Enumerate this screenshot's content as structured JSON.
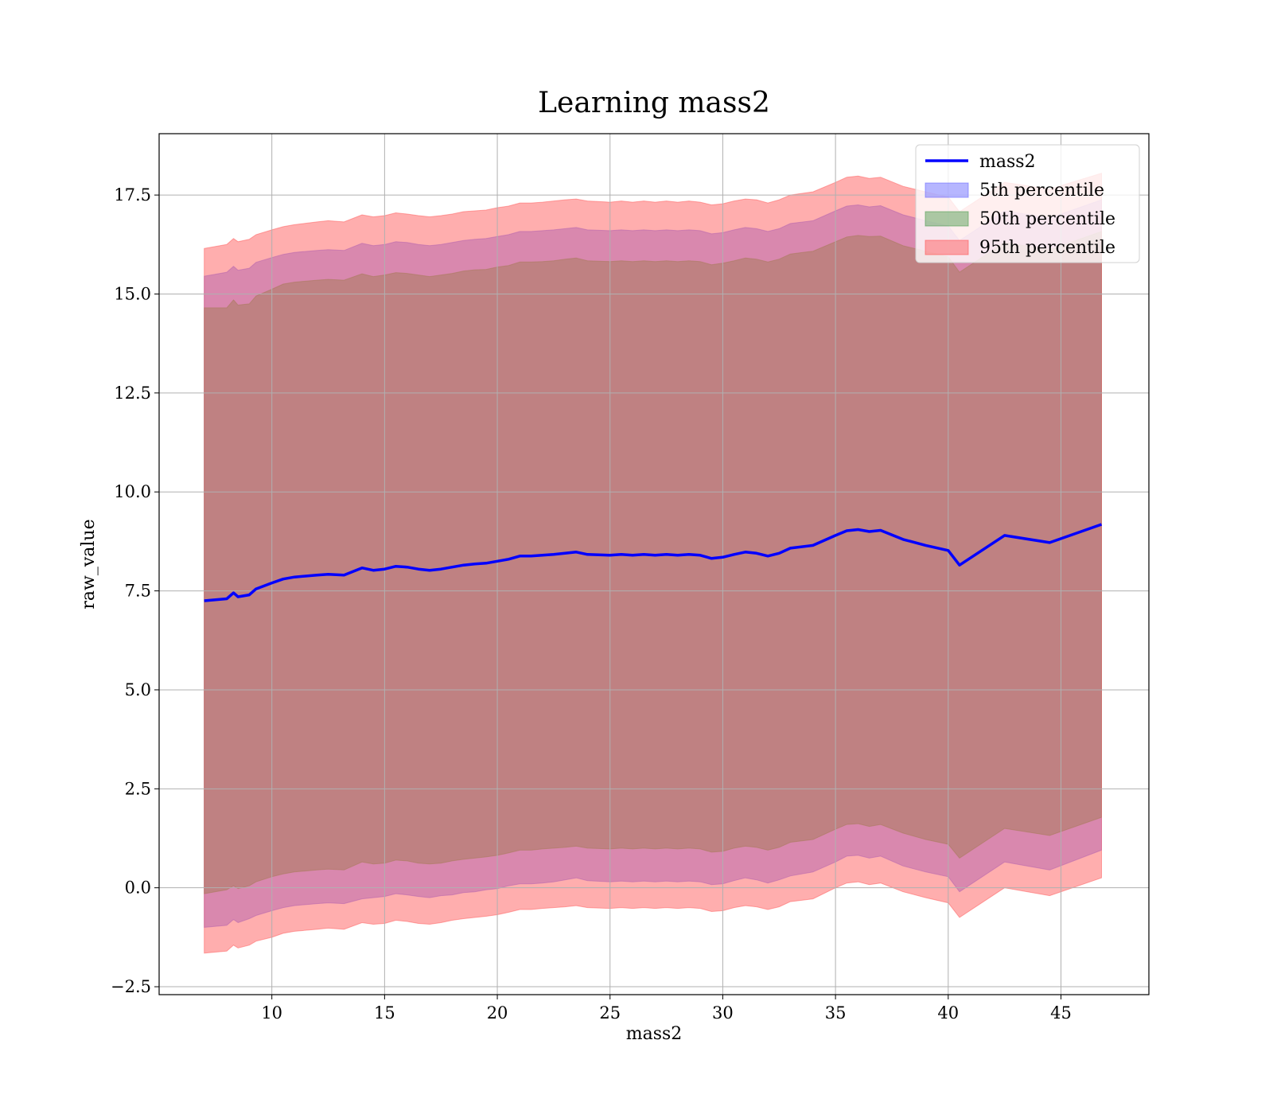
{
  "chart_data": {
    "type": "area",
    "title": "Learning mass2",
    "xlabel": "mass2",
    "ylabel": "raw_value",
    "xlim": [
      5.0,
      48.9
    ],
    "ylim": [
      -2.7,
      19.05
    ],
    "grid": true,
    "legend_placement": "top-right",
    "x_ticks": [
      10,
      15,
      20,
      25,
      30,
      35,
      40,
      45
    ],
    "x_tick_labels": [
      "10",
      "15",
      "20",
      "25",
      "30",
      "35",
      "40",
      "45"
    ],
    "y_ticks": [
      -2.5,
      0.0,
      2.5,
      5.0,
      7.5,
      10.0,
      12.5,
      15.0,
      17.5
    ],
    "y_tick_labels": [
      "−2.5",
      "0.0",
      "2.5",
      "5.0",
      "7.5",
      "10.0",
      "12.5",
      "15.0",
      "17.5"
    ],
    "x": [
      7.0,
      8.0,
      8.3,
      8.5,
      9.0,
      9.3,
      10.0,
      10.5,
      11.0,
      12.0,
      12.5,
      13.2,
      14.0,
      14.5,
      15.0,
      15.5,
      16.0,
      16.5,
      17.0,
      17.5,
      18.0,
      18.5,
      19.0,
      19.5,
      20.0,
      20.5,
      21.0,
      21.5,
      22.0,
      22.5,
      23.0,
      23.5,
      24.0,
      25.0,
      25.5,
      26.0,
      26.5,
      27.0,
      27.5,
      28.0,
      28.5,
      29.0,
      29.5,
      30.0,
      30.5,
      31.0,
      31.5,
      32.0,
      32.5,
      33.0,
      34.0,
      35.0,
      35.5,
      36.0,
      36.5,
      37.0,
      38.0,
      39.0,
      40.0,
      40.5,
      42.5,
      44.5,
      46.8
    ],
    "series": [
      {
        "name": "mass2",
        "kind": "line",
        "color": "#0000ff",
        "values": [
          7.25,
          7.3,
          7.45,
          7.35,
          7.4,
          7.55,
          7.7,
          7.8,
          7.85,
          7.9,
          7.92,
          7.9,
          8.08,
          8.02,
          8.05,
          8.12,
          8.1,
          8.05,
          8.02,
          8.05,
          8.1,
          8.15,
          8.18,
          8.2,
          8.25,
          8.3,
          8.38,
          8.38,
          8.4,
          8.42,
          8.45,
          8.48,
          8.42,
          8.4,
          8.42,
          8.4,
          8.42,
          8.4,
          8.42,
          8.4,
          8.42,
          8.4,
          8.32,
          8.35,
          8.42,
          8.48,
          8.45,
          8.38,
          8.45,
          8.58,
          8.65,
          8.9,
          9.02,
          9.05,
          9.0,
          9.03,
          8.8,
          8.65,
          8.52,
          8.15,
          8.9,
          8.72,
          9.18
        ]
      },
      {
        "name": "5th percentile",
        "kind": "band",
        "color": "#6666ff",
        "lower": [
          -1.0,
          -0.95,
          -0.8,
          -0.88,
          -0.78,
          -0.7,
          -0.58,
          -0.5,
          -0.45,
          -0.4,
          -0.38,
          -0.4,
          -0.28,
          -0.25,
          -0.22,
          -0.15,
          -0.18,
          -0.22,
          -0.25,
          -0.2,
          -0.18,
          -0.12,
          -0.1,
          -0.05,
          -0.02,
          0.05,
          0.1,
          0.1,
          0.12,
          0.15,
          0.2,
          0.25,
          0.18,
          0.15,
          0.17,
          0.15,
          0.17,
          0.15,
          0.17,
          0.15,
          0.17,
          0.15,
          0.08,
          0.1,
          0.18,
          0.25,
          0.2,
          0.12,
          0.2,
          0.3,
          0.4,
          0.65,
          0.8,
          0.82,
          0.75,
          0.8,
          0.55,
          0.4,
          0.28,
          -0.1,
          0.65,
          0.45,
          0.95
        ],
        "upper": [
          15.45,
          15.55,
          15.7,
          15.6,
          15.65,
          15.8,
          15.92,
          16.0,
          16.05,
          16.1,
          16.12,
          16.1,
          16.28,
          16.22,
          16.25,
          16.32,
          16.3,
          16.25,
          16.22,
          16.25,
          16.3,
          16.35,
          16.38,
          16.4,
          16.45,
          16.5,
          16.58,
          16.58,
          16.6,
          16.62,
          16.65,
          16.68,
          16.62,
          16.6,
          16.62,
          16.6,
          16.62,
          16.6,
          16.62,
          16.6,
          16.62,
          16.6,
          16.52,
          16.55,
          16.62,
          16.68,
          16.65,
          16.58,
          16.65,
          16.78,
          16.85,
          17.1,
          17.22,
          17.25,
          17.2,
          17.23,
          17.0,
          16.85,
          16.72,
          16.35,
          17.1,
          16.92,
          17.38
        ]
      },
      {
        "name": "50th percentile",
        "kind": "band",
        "color": "#4f9a4f",
        "lower": [
          -0.15,
          -0.05,
          0.05,
          -0.02,
          0.05,
          0.15,
          0.28,
          0.35,
          0.4,
          0.45,
          0.47,
          0.45,
          0.65,
          0.6,
          0.62,
          0.7,
          0.68,
          0.62,
          0.6,
          0.62,
          0.68,
          0.72,
          0.75,
          0.78,
          0.82,
          0.88,
          0.95,
          0.95,
          0.98,
          1.0,
          1.02,
          1.05,
          1.0,
          0.98,
          1.0,
          0.98,
          1.0,
          0.98,
          1.0,
          0.98,
          1.0,
          0.98,
          0.9,
          0.92,
          1.0,
          1.05,
          1.02,
          0.95,
          1.02,
          1.15,
          1.22,
          1.48,
          1.6,
          1.62,
          1.55,
          1.6,
          1.38,
          1.22,
          1.1,
          0.75,
          1.5,
          1.32,
          1.78
        ]
      },
      {
        "name": "95th percentile",
        "kind": "band",
        "color": "#ff5555",
        "lower": [
          -1.65,
          -1.6,
          -1.45,
          -1.52,
          -1.45,
          -1.35,
          -1.25,
          -1.15,
          -1.1,
          -1.05,
          -1.02,
          -1.05,
          -0.88,
          -0.92,
          -0.9,
          -0.82,
          -0.85,
          -0.9,
          -0.92,
          -0.88,
          -0.82,
          -0.78,
          -0.75,
          -0.72,
          -0.68,
          -0.62,
          -0.55,
          -0.55,
          -0.52,
          -0.5,
          -0.48,
          -0.45,
          -0.5,
          -0.52,
          -0.5,
          -0.52,
          -0.5,
          -0.52,
          -0.5,
          -0.52,
          -0.5,
          -0.52,
          -0.6,
          -0.58,
          -0.5,
          -0.45,
          -0.48,
          -0.55,
          -0.48,
          -0.35,
          -0.28,
          0.0,
          0.12,
          0.15,
          0.08,
          0.12,
          -0.1,
          -0.25,
          -0.38,
          -0.75,
          0.0,
          -0.2,
          0.25
        ],
        "upper": [
          16.15,
          16.25,
          16.4,
          16.32,
          16.38,
          16.5,
          16.62,
          16.7,
          16.75,
          16.82,
          16.85,
          16.82,
          17.0,
          16.95,
          16.98,
          17.05,
          17.02,
          16.98,
          16.95,
          16.98,
          17.02,
          17.08,
          17.1,
          17.12,
          17.18,
          17.22,
          17.3,
          17.3,
          17.32,
          17.35,
          17.38,
          17.4,
          17.35,
          17.32,
          17.35,
          17.32,
          17.35,
          17.32,
          17.35,
          17.32,
          17.35,
          17.32,
          17.25,
          17.28,
          17.35,
          17.4,
          17.38,
          17.3,
          17.38,
          17.5,
          17.58,
          17.82,
          17.95,
          17.98,
          17.92,
          17.95,
          17.72,
          17.58,
          17.45,
          17.08,
          17.82,
          17.65,
          18.05
        ]
      }
    ]
  }
}
